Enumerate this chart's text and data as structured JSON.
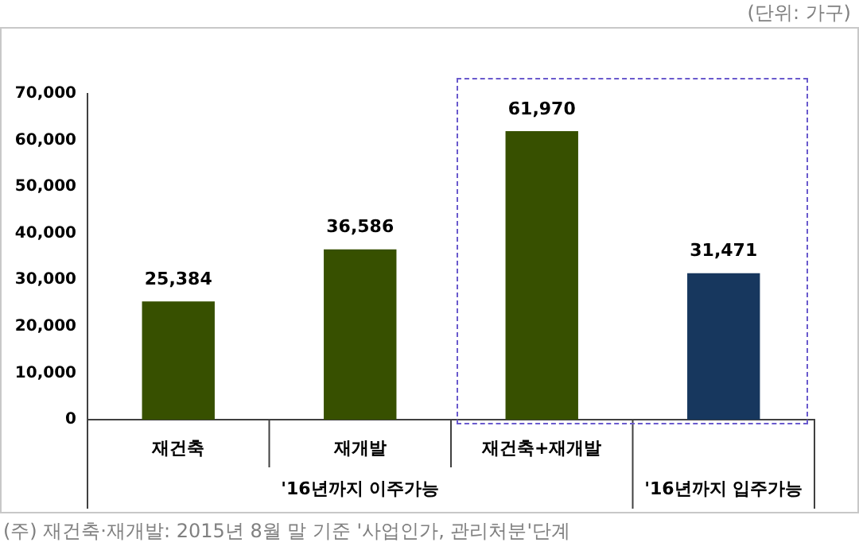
{
  "chart_data": {
    "type": "bar",
    "categories": [
      "재건축",
      "재개발",
      "재건축+재개발",
      null
    ],
    "values": [
      25384,
      36586,
      61970,
      31471
    ],
    "colors": [
      "#375000",
      "#375000",
      "#375000",
      "#17375e"
    ],
    "ylim": [
      0,
      70000
    ],
    "yticks": [
      {
        "value": 0,
        "label": "0"
      },
      {
        "value": 10000,
        "label": "10,000"
      },
      {
        "value": 20000,
        "label": "20,000"
      },
      {
        "value": 30000,
        "label": "30,000"
      },
      {
        "value": 40000,
        "label": "40,000"
      },
      {
        "value": 50000,
        "label": "50,000"
      },
      {
        "value": 60000,
        "label": "60,000"
      },
      {
        "value": 70000,
        "label": "70,000"
      }
    ],
    "value_labels": [
      "25,384",
      "36,586",
      "61,970",
      "31,471"
    ],
    "grid": false,
    "legend": false,
    "annotations": [
      "(단위: 가구)",
      "'16년까지 이주가능",
      "'16년까지 입주가능",
      "(주) 재건축·재개발: 2015년 8월 말 기준 '사업인가, 관리처분'단계"
    ]
  }
}
